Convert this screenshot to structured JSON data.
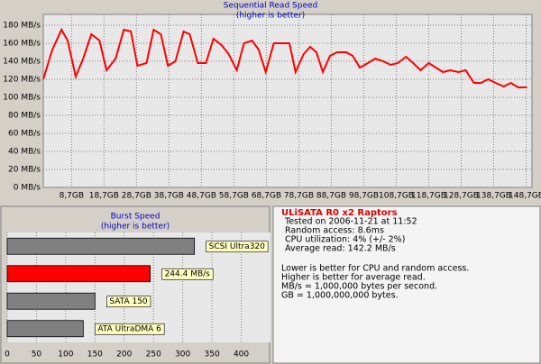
{
  "chart_data": [
    {
      "type": "line",
      "title": "Sequential Read Speed",
      "subtitle": "(higher is better)",
      "x": [
        0,
        2.8,
        5.6,
        7.5,
        10.0,
        12.3,
        14.8,
        17.3,
        19.5,
        22.3,
        24.8,
        27.0,
        29.0,
        31.8,
        34.0,
        36.2,
        38.4,
        40.7,
        43.2,
        45.1,
        47.6,
        50.1,
        52.4,
        54.9,
        57.1,
        59.6,
        61.8,
        64.3,
        66.3,
        68.5,
        71.0,
        75.8,
        77.7,
        80.2,
        82.2,
        84.1,
        86.1,
        88.3,
        90.5,
        93.3,
        95.3,
        97.5,
        100.0,
        102.2,
        104.7,
        107.0,
        109.2,
        111.7,
        113.9,
        116.2,
        118.7,
        120.9,
        123.1,
        125.3,
        127.9,
        130.1,
        132.6,
        134.8,
        137.0,
        139.3,
        141.8,
        144.0,
        146.2,
        149.0
      ],
      "values": [
        120,
        153,
        175,
        163,
        123,
        143,
        170,
        163,
        130,
        143,
        175,
        173,
        135,
        138,
        175,
        170,
        135,
        140,
        173,
        170,
        138,
        138,
        165,
        158,
        148,
        130,
        160,
        163,
        153,
        128,
        160,
        160,
        128,
        148,
        156,
        150,
        128,
        146,
        150,
        150,
        146,
        133,
        138,
        143,
        140,
        136,
        138,
        145,
        138,
        130,
        138,
        133,
        128,
        130,
        128,
        130,
        116,
        116,
        120,
        116,
        112,
        116,
        111,
        111
      ],
      "color": "#ff0000",
      "xlim": [
        0,
        150.5
      ],
      "xticks": [
        {
          "value": 8.7,
          "label": "8,7GB"
        },
        {
          "value": 18.7,
          "label": "18,7GB"
        },
        {
          "value": 28.7,
          "label": "28,7GB"
        },
        {
          "value": 38.7,
          "label": "38,7GB"
        },
        {
          "value": 48.7,
          "label": "48,7GB"
        },
        {
          "value": 58.7,
          "label": "58,7GB"
        },
        {
          "value": 68.7,
          "label": "68,7GB"
        },
        {
          "value": 78.7,
          "label": "78,7GB"
        },
        {
          "value": 88.7,
          "label": "88,7GB"
        },
        {
          "value": 98.7,
          "label": "98,7GB"
        },
        {
          "value": 108.7,
          "label": "108,7GB"
        },
        {
          "value": 118.7,
          "label": "118,7GB"
        },
        {
          "value": 128.7,
          "label": "128,7GB"
        },
        {
          "value": 138.7,
          "label": "138,7GB"
        },
        {
          "value": 148.7,
          "label": "148,7GB"
        }
      ],
      "ylim": [
        0,
        192
      ],
      "yticks": [
        {
          "value": 0,
          "label": "0 MB/s"
        },
        {
          "value": 20,
          "label": "20 MB/s"
        },
        {
          "value": 40,
          "label": "40 MB/s"
        },
        {
          "value": 60,
          "label": "60 MB/s"
        },
        {
          "value": 80,
          "label": "80 MB/s"
        },
        {
          "value": 100,
          "label": "100 MB/s"
        },
        {
          "value": 120,
          "label": "120 MB/s"
        },
        {
          "value": 140,
          "label": "140 MB/s"
        },
        {
          "value": 160,
          "label": "160 MB/s"
        },
        {
          "value": 180,
          "label": "180 MB/s"
        }
      ],
      "grid": true
    },
    {
      "type": "bar",
      "orientation": "horizontal",
      "title": "Burst Speed",
      "subtitle": "(higher is better)",
      "categories": [
        "SCSI Ultra320",
        null,
        "SATA 150",
        "ATA UltraDMA 6"
      ],
      "values": [
        320,
        244.4,
        150,
        130
      ],
      "value_labels": [
        null,
        "244.4 MB/s",
        null,
        null
      ],
      "colors": [
        "#808080",
        "#ff0000",
        "#808080",
        "#808080"
      ],
      "xlim": [
        0,
        450
      ],
      "xticks": [
        0,
        50,
        100,
        150,
        200,
        250,
        300,
        350,
        400
      ],
      "grid": true
    }
  ],
  "info_panel": {
    "title": "ULiSATA R0 x2 Raptors",
    "lines": [
      "Tested on 2006-11-21 at 11:52",
      "Random access: 8.6ms",
      "CPU utilization: 4% (+/- 2%)",
      "Average read: 142.2 MB/s"
    ],
    "notes": [
      "Lower is better for CPU and random access.",
      "Higher is better for average read.",
      "MB/s = 1,000,000 bytes per second.",
      "GB = 1,000,000,000 bytes."
    ]
  }
}
